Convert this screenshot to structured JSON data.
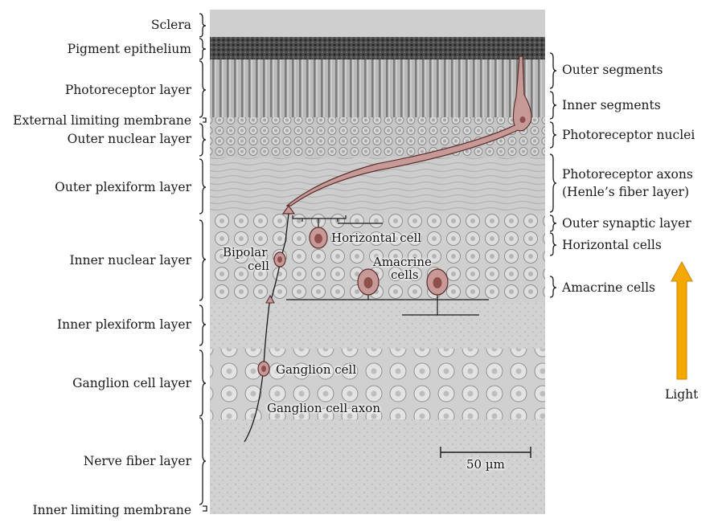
{
  "left_labels": {
    "sclera": "Sclera",
    "pigment_epithelium": "Pigment epithelium",
    "photoreceptor_layer": "Photoreceptor layer",
    "external_limiting_membrane": "External limiting membrane",
    "outer_nuclear_layer": "Outer nuclear layer",
    "outer_plexiform_layer": "Outer plexiform layer",
    "inner_nuclear_layer": "Inner nuclear layer",
    "inner_plexiform_layer": "Inner plexiform layer",
    "ganglion_cell_layer": "Ganglion cell layer",
    "nerve_fiber_layer": "Nerve fiber layer",
    "inner_limiting_membrane": "Inner limiting membrane"
  },
  "right_labels": {
    "outer_segments": "Outer segments",
    "inner_segments": "Inner segments",
    "photoreceptor_nuclei": "Photoreceptor nuclei",
    "photoreceptor_axons_line1": "Photoreceptor axons",
    "photoreceptor_axons_line2": "(Henle’s fiber layer)",
    "outer_synaptic_layer": "Outer synaptic layer",
    "horizontal_cells": "Horizontal cells",
    "amacrine_cells": "Amacrine cells"
  },
  "cell_labels": {
    "horizontal_cell": "Horizontal cell",
    "bipolar_line1": "Bipolar",
    "bipolar_line2": "cell",
    "amacrine_line1": "Amacrine",
    "amacrine_line2": "cells",
    "ganglion_cell": "Ganglion cell",
    "ganglion_cell_axon": "Ganglion cell axon"
  },
  "scale_bar": {
    "label": "50 µm"
  },
  "light": {
    "label": "Light",
    "color": "#f5a800"
  },
  "colors": {
    "cell_fill": "#c79a98",
    "cell_stroke": "#5a2f2e",
    "nucleus": "#8f4f4d"
  }
}
